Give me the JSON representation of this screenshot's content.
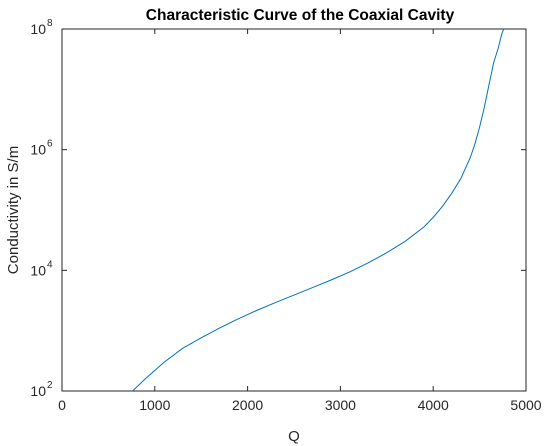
{
  "chart_data": {
    "type": "line",
    "title": "Characteristic Curve of the Coaxial Cavity",
    "xlabel": "Q",
    "ylabel": "Conductivity in S/m",
    "xlim": [
      0,
      5000
    ],
    "ylim": [
      100,
      100000000
    ],
    "yscale": "log",
    "grid": false,
    "x_ticks": [
      "0",
      "1000",
      "2000",
      "3000",
      "4000",
      "5000"
    ],
    "y_ticks": [
      {
        "base": "10",
        "exp": "2"
      },
      {
        "base": "10",
        "exp": "4"
      },
      {
        "base": "10",
        "exp": "6"
      },
      {
        "base": "10",
        "exp": "8"
      }
    ],
    "line_color": "#0072BD",
    "series": [
      {
        "x": [
          760,
          900,
          1100,
          1300,
          1500,
          1700,
          1900,
          2100,
          2300,
          2500,
          2700,
          2900,
          3100,
          3300,
          3500,
          3700,
          3900,
          4000,
          4100,
          4200,
          4300,
          4400,
          4450,
          4500,
          4550,
          4600,
          4650,
          4700,
          4740,
          4760
        ],
        "y": [
          100,
          160,
          300,
          510,
          760,
          1110,
          1570,
          2170,
          2920,
          3890,
          5180,
          6910,
          9410,
          13300,
          19600,
          30400,
          52300,
          75500,
          115000,
          189000,
          338000,
          742000,
          1250000,
          2360000,
          4980000,
          11700000,
          27200000,
          47700000,
          83700000,
          100000000
        ]
      }
    ]
  }
}
